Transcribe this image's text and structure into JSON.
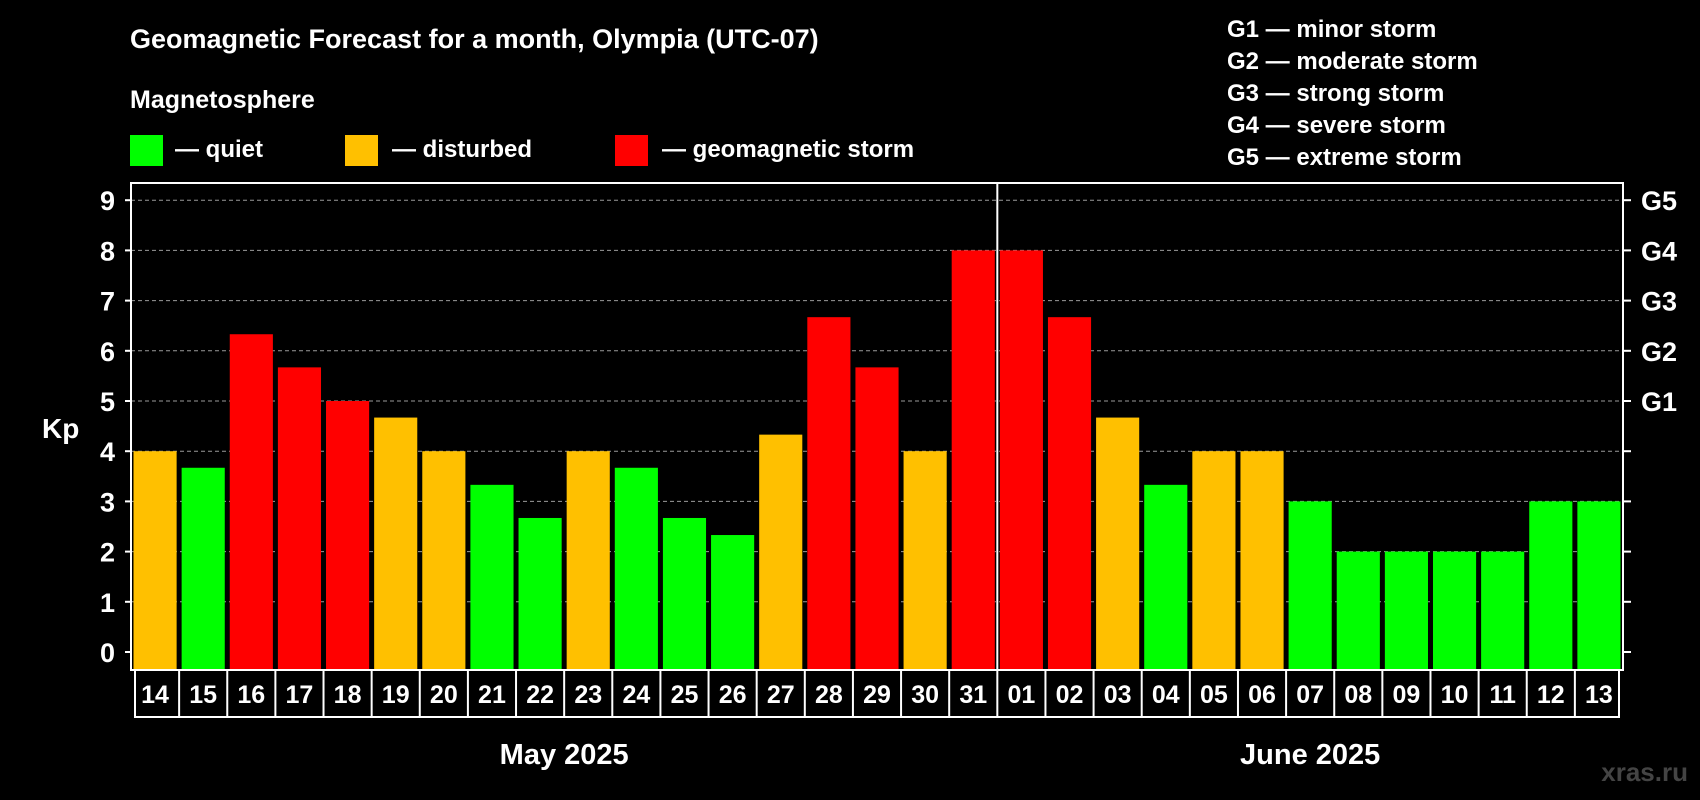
{
  "chart_data": {
    "type": "bar",
    "title": "Geomagnetic Forecast for a month, Olympia (UTC-07)",
    "legend_title": "Magnetosphere",
    "legend": [
      {
        "key": "quiet",
        "label": "— quiet",
        "color": "#00ff00"
      },
      {
        "key": "disturbed",
        "label": "— disturbed",
        "color": "#ffc000"
      },
      {
        "key": "storm",
        "label": "— geomagnetic storm",
        "color": "#ff0000"
      }
    ],
    "storm_scale": [
      "G1 — minor storm",
      "G2 — moderate storm",
      "G3 — strong storm",
      "G4 — severe storm",
      "G5 — extreme storm"
    ],
    "ylabel": "Kp",
    "ylim": [
      0,
      9
    ],
    "yticks": [
      "0",
      "1",
      "2",
      "3",
      "4",
      "5",
      "6",
      "7",
      "8",
      "9"
    ],
    "right_ticks": [
      {
        "value": 5,
        "label": "G1"
      },
      {
        "value": 6,
        "label": "G2"
      },
      {
        "value": 7,
        "label": "G3"
      },
      {
        "value": 8,
        "label": "G4"
      },
      {
        "value": 9,
        "label": "G5"
      }
    ],
    "grid": true,
    "categories": [
      "14",
      "15",
      "16",
      "17",
      "18",
      "19",
      "20",
      "21",
      "22",
      "23",
      "24",
      "25",
      "26",
      "27",
      "28",
      "29",
      "30",
      "31",
      "01",
      "02",
      "03",
      "04",
      "05",
      "06",
      "07",
      "08",
      "09",
      "10",
      "11",
      "12",
      "13"
    ],
    "values": [
      4.0,
      3.67,
      6.33,
      5.67,
      5.0,
      4.67,
      4.0,
      3.33,
      2.67,
      4.0,
      3.67,
      2.67,
      2.33,
      4.33,
      6.67,
      5.67,
      4.0,
      8.0,
      8.0,
      6.67,
      4.67,
      3.33,
      4.0,
      4.0,
      3.0,
      2.0,
      2.0,
      2.0,
      2.0,
      3.0,
      3.0
    ],
    "levels": [
      "disturbed",
      "quiet",
      "storm",
      "storm",
      "storm",
      "disturbed",
      "disturbed",
      "quiet",
      "quiet",
      "disturbed",
      "quiet",
      "quiet",
      "quiet",
      "disturbed",
      "storm",
      "storm",
      "disturbed",
      "storm",
      "storm",
      "storm",
      "disturbed",
      "quiet",
      "disturbed",
      "disturbed",
      "quiet",
      "quiet",
      "quiet",
      "quiet",
      "quiet",
      "quiet",
      "quiet"
    ],
    "months": [
      {
        "label": "May 2025",
        "start_index": 0,
        "end_index": 17
      },
      {
        "label": "June 2025",
        "start_index": 18,
        "end_index": 30
      }
    ]
  },
  "watermark": "xras.ru"
}
